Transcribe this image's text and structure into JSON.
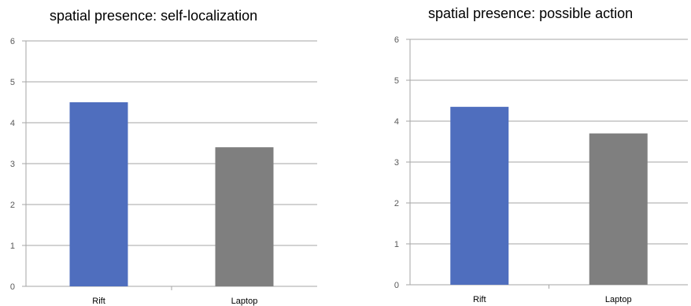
{
  "chart_data": [
    {
      "type": "bar",
      "title": "spatial presence: self-localization",
      "categories": [
        "Rift",
        "Laptop"
      ],
      "values": [
        4.5,
        3.4
      ],
      "colors": [
        "#4f6ebe",
        "#7f7f7f"
      ],
      "ylim": [
        0,
        6
      ],
      "yticks": [
        "0",
        "1",
        "2",
        "3",
        "4",
        "5",
        "6"
      ],
      "xlabel": "",
      "ylabel": "",
      "grid": true,
      "legend": "none"
    },
    {
      "type": "bar",
      "title": "spatial presence: possible action",
      "categories": [
        "Rift",
        "Laptop"
      ],
      "values": [
        4.35,
        3.7
      ],
      "colors": [
        "#4f6ebe",
        "#7f7f7f"
      ],
      "ylim": [
        0,
        6
      ],
      "yticks": [
        "0",
        "1",
        "2",
        "3",
        "4",
        "5",
        "6"
      ],
      "xlabel": "",
      "ylabel": "",
      "grid": true,
      "legend": "none"
    }
  ]
}
